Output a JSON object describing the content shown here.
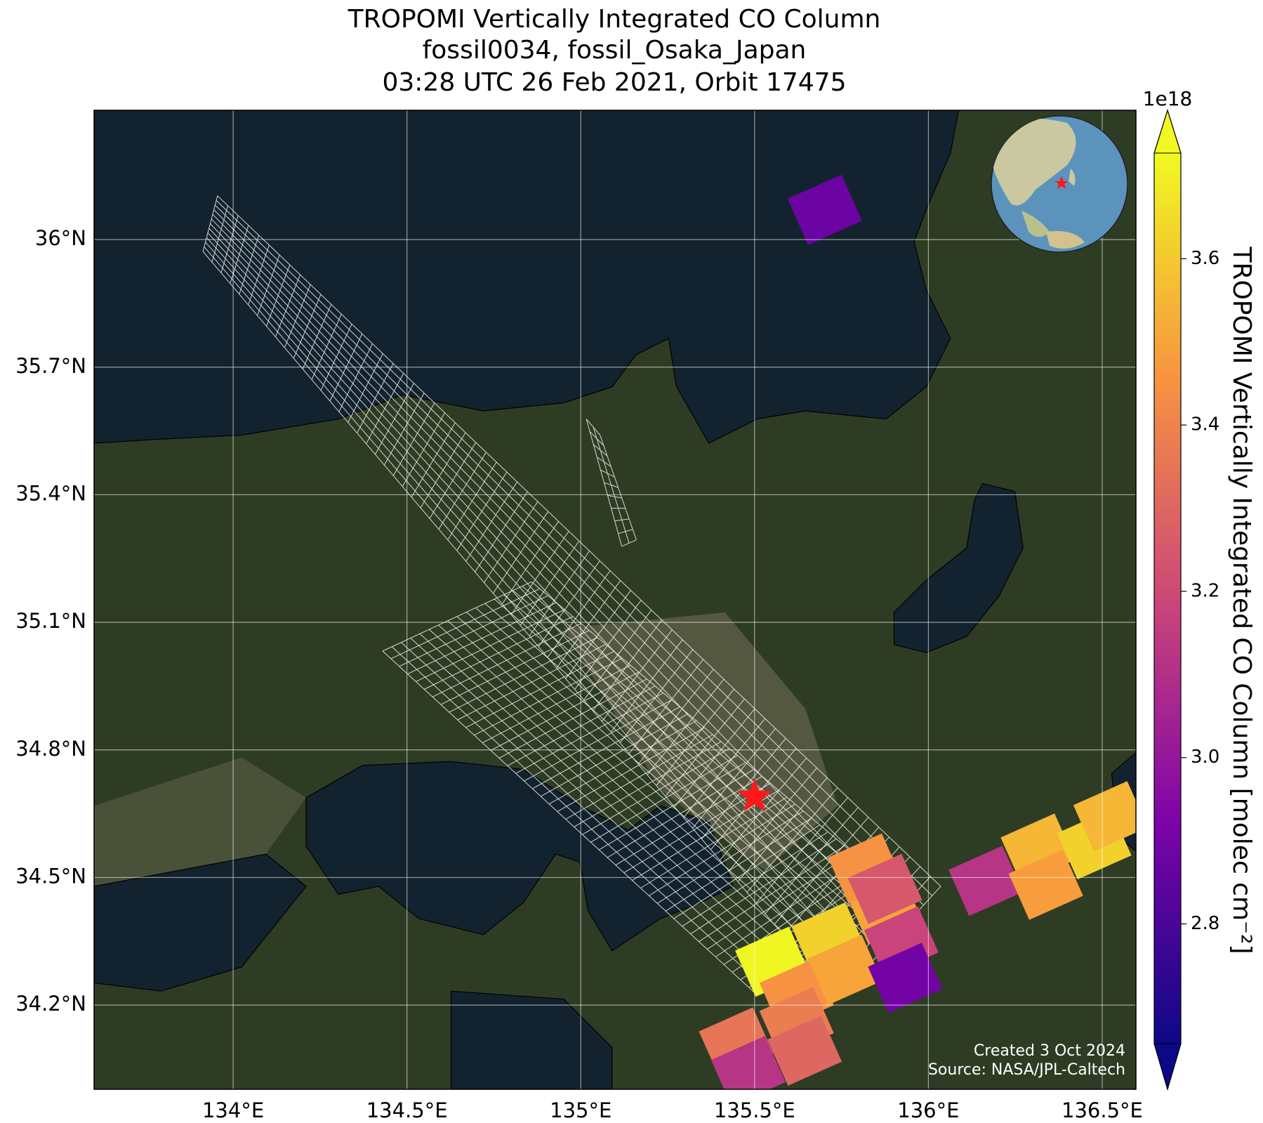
{
  "chart_data": {
    "type": "map",
    "title": [
      "TROPOMI Vertically Integrated CO Column",
      "fossil0034, fossil_Osaka_Japan",
      "03:28 UTC 26 Feb 2021, Orbit 17475"
    ],
    "xlim": [
      133.6,
      136.597
    ],
    "ylim": [
      34.002,
      36.304
    ],
    "xticks": [
      {
        "value": 134,
        "label": "134°E"
      },
      {
        "value": 134.5,
        "label": "134.5°E"
      },
      {
        "value": 135,
        "label": "135°E"
      },
      {
        "value": 135.5,
        "label": "135.5°E"
      },
      {
        "value": 136,
        "label": "136°E"
      },
      {
        "value": 136.5,
        "label": "136.5°E"
      }
    ],
    "yticks": [
      {
        "value": 34.2,
        "label": "34.2°N"
      },
      {
        "value": 34.5,
        "label": "34.5°N"
      },
      {
        "value": 34.8,
        "label": "34.8°N"
      },
      {
        "value": 35.1,
        "label": "35.1°N"
      },
      {
        "value": 35.4,
        "label": "35.4°N"
      },
      {
        "value": 35.7,
        "label": "35.7°N"
      },
      {
        "value": 36,
        "label": "36°N"
      }
    ],
    "grid": true,
    "pixels": {
      "lon": [
        135.702,
        135.551,
        135.713,
        135.875,
        135.818,
        135.621,
        135.76,
        135.922,
        135.875,
        135.933,
        135.447,
        135.621,
        135.482,
        135.644,
        136.165,
        136.315,
        136.338,
        136.477,
        136.524
      ],
      "lat": [
        36.07,
        34.302,
        34.359,
        34.426,
        34.521,
        34.226,
        34.283,
        34.35,
        34.473,
        34.264,
        34.112,
        34.16,
        34.045,
        34.093,
        34.492,
        34.568,
        34.483,
        34.578,
        34.644
      ],
      "values": [
        2.88,
        3.72,
        3.62,
        3.5,
        3.45,
        3.45,
        3.5,
        3.18,
        3.25,
        2.9,
        3.35,
        3.38,
        3.12,
        3.3,
        3.12,
        3.55,
        3.48,
        3.62,
        3.55
      ]
    },
    "colorbar": {
      "label": "TROPOMI Vertically Integrated CO Column [molec cm⁻²]",
      "scale_label": "1e18",
      "cmap": "plasma",
      "lim": [
        2.656,
        3.727
      ],
      "ticks": [
        2.8,
        {
          "value": 3.0,
          "label": "3.0"
        },
        3.2,
        3.4,
        3.6
      ]
    },
    "site": {
      "lon": 135.5,
      "lat": 34.69,
      "color": "#ff1a1a"
    },
    "annotations": [
      "Created 3 Oct 2024",
      "Source: NASA/JPL-Caltech"
    ]
  }
}
